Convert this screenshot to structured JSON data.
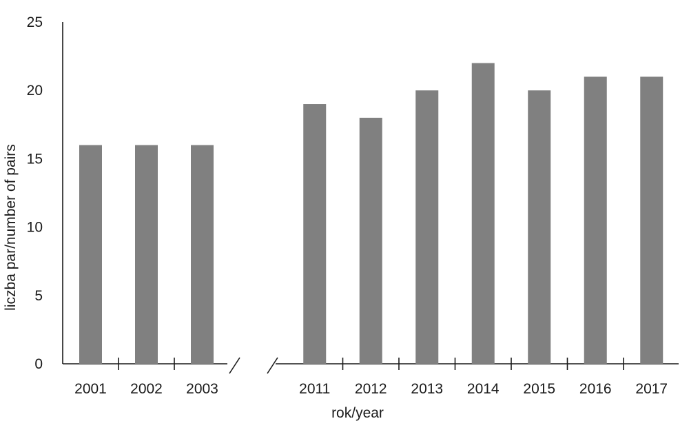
{
  "chart_data": {
    "type": "bar",
    "xlabel": "rok/year",
    "ylabel": "liczba par/number of pairs",
    "ylim": [
      0,
      25
    ],
    "yticks": [
      0,
      5,
      10,
      15,
      20,
      25
    ],
    "bar_color": "#808080",
    "axis_color": "#1a1a1a",
    "x_axis_break": true,
    "groups": [
      {
        "categories": [
          "2001",
          "2002",
          "2003"
        ],
        "values": [
          16,
          16,
          16
        ]
      },
      {
        "categories": [
          "2011",
          "2012",
          "2013",
          "2014",
          "2015",
          "2016",
          "2017"
        ],
        "values": [
          19,
          18,
          20,
          22,
          20,
          21,
          21
        ]
      }
    ]
  }
}
